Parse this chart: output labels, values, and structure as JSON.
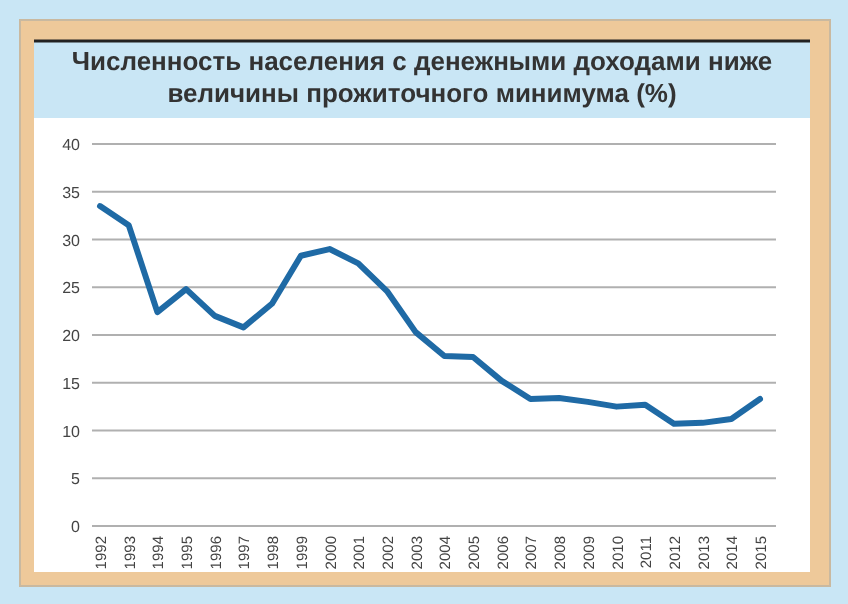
{
  "chart_data": {
    "type": "line",
    "title": "Численность населения с денежными доходами ниже величины прожиточного минимума (%)",
    "categories": [
      "1992",
      "1993",
      "1994",
      "1995",
      "1996",
      "1997",
      "1998",
      "1999",
      "2000",
      "2001",
      "2002",
      "2003",
      "2004",
      "2005",
      "2006",
      "2007",
      "2008",
      "2009",
      "2010",
      "2011",
      "2012",
      "2013",
      "2014",
      "2015"
    ],
    "series": [
      {
        "color": "#1f6aa5",
        "values": [
          33.5,
          31.5,
          22.4,
          24.8,
          22,
          20.8,
          23.3,
          28.3,
          29,
          27.5,
          24.6,
          20.3,
          17.8,
          17.7,
          15.2,
          13.3,
          13.4,
          13,
          12.5,
          12.7,
          10.7,
          10.8,
          11.2,
          13.3
        ]
      }
    ],
    "ylim": [
      0,
      40
    ],
    "yticks": [
      0,
      5,
      10,
      15,
      20,
      25,
      30,
      35,
      40
    ],
    "grid": "y",
    "marker": "none",
    "line_style": "solid"
  }
}
